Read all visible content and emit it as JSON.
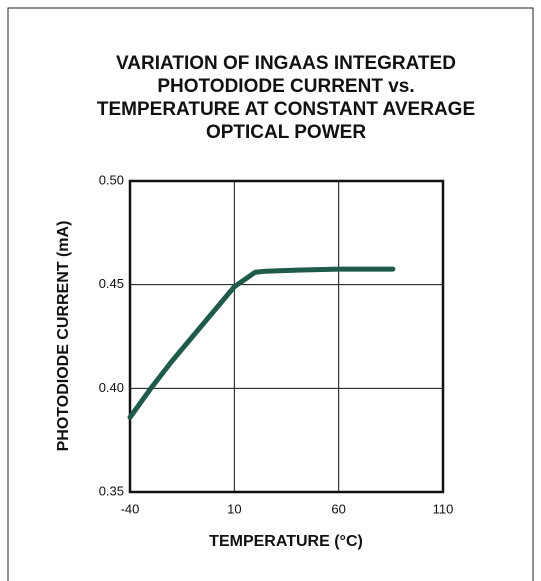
{
  "chart_data": {
    "type": "line",
    "title": [
      "VARIATION OF INGAAS INTEGRATED",
      "PHOTODIODE CURRENT vs.",
      "TEMPERATURE AT CONSTANT AVERAGE",
      "OPTICAL POWER"
    ],
    "x_label": "TEMPERATURE (°C)",
    "y_label": "PHOTODIODE CURRENT (mA)",
    "x": [
      -40,
      -30,
      -20,
      -10,
      0,
      10,
      20,
      25,
      40,
      60,
      86
    ],
    "series": [
      {
        "name": "Photodiode current",
        "color": "#1f5a4a",
        "values": [
          0.386,
          0.4,
          0.413,
          0.425,
          0.437,
          0.449,
          0.456,
          0.4565,
          0.457,
          0.4575,
          0.4575
        ]
      }
    ],
    "xlim": [
      -40,
      110
    ],
    "xticks": [
      -40,
      10,
      60,
      110
    ],
    "ylim": [
      0.35,
      0.5
    ],
    "yticks": [
      0.35,
      {
        "value": 0.4,
        "label": "0.40"
      },
      0.45,
      {
        "value": 0.5,
        "label": "0.50"
      }
    ],
    "grid": true
  }
}
